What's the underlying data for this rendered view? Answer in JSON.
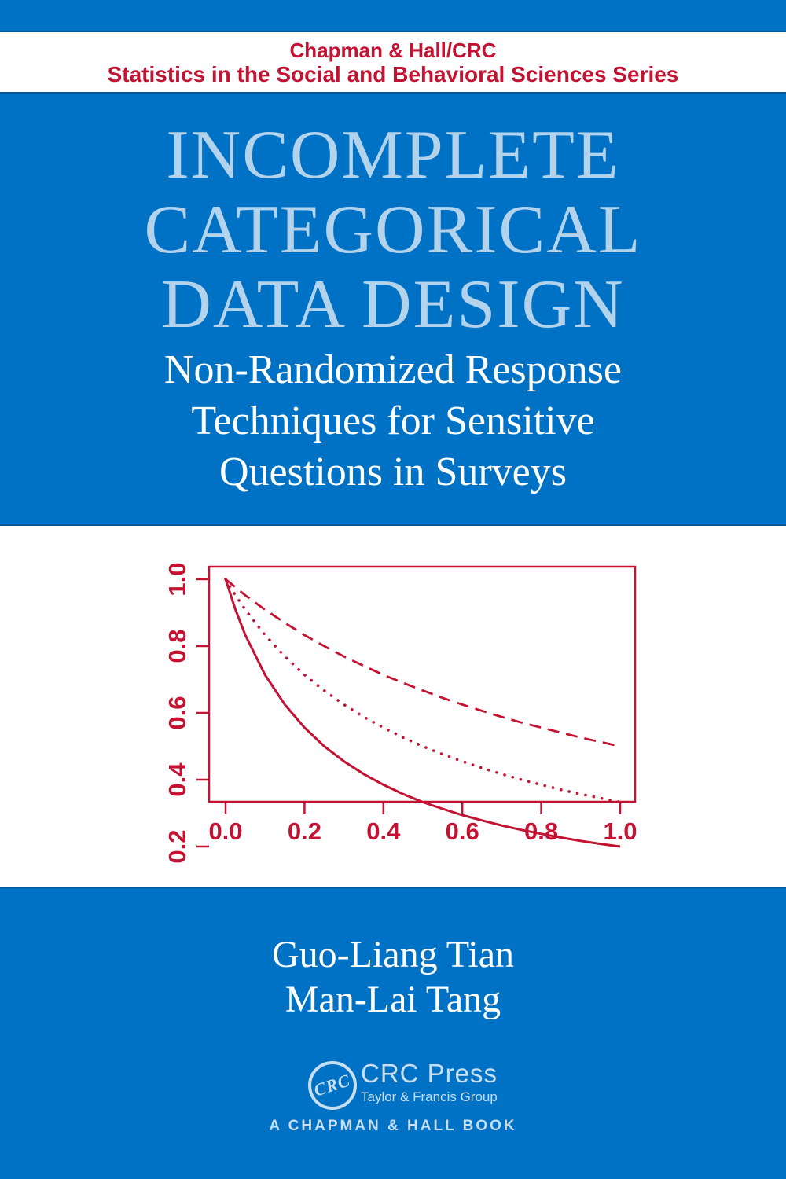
{
  "header": {
    "publisher": "Chapman & Hall/CRC",
    "series": "Statistics in the Social and Behavioral Sciences Series"
  },
  "title": {
    "lines": [
      "INCOMPLETE",
      "CATEGORICAL",
      "DATA DESIGN"
    ]
  },
  "subtitle": {
    "lines": [
      "Non-Randomized Response",
      "Techniques for Sensitive",
      "Questions in Surveys"
    ]
  },
  "authors": [
    "Guo-Liang Tian",
    "Man-Lai Tang"
  ],
  "publisher_logo": {
    "monogram": "CRC",
    "name": "CRC Press",
    "group": "Taylor & Francis Group",
    "book_line": "A CHAPMAN & HALL BOOK"
  },
  "colors": {
    "background_blue": "#0072C6",
    "accent_red": "#C41232",
    "title_light_blue": "#B3D2EB",
    "logo_pale_blue": "#C9DEF0",
    "white": "#FFFFFF"
  },
  "chart_data": {
    "type": "line",
    "title": "",
    "xlabel": "",
    "ylabel": "",
    "xlim": [
      0.0,
      1.0
    ],
    "ylim": [
      0.2,
      1.0
    ],
    "grid": false,
    "legend": "none",
    "line_color": "#C41232",
    "xticks": [
      "0.0",
      "0.2",
      "0.4",
      "0.6",
      "0.8",
      "1.0"
    ],
    "yticks": [
      "0.2",
      "0.4",
      "0.6",
      "0.8",
      "1.0"
    ],
    "x": [
      0,
      0.025,
      0.05,
      0.1,
      0.15,
      0.2,
      0.25,
      0.3,
      0.35,
      0.4,
      0.45,
      0.5,
      0.55,
      0.6,
      0.65,
      0.7,
      0.75,
      0.8,
      0.85,
      0.9,
      0.95,
      1.0
    ],
    "series": [
      {
        "name": "solid-curve",
        "style": "solid",
        "values": [
          1.0,
          0.909,
          0.833,
          0.714,
          0.625,
          0.556,
          0.5,
          0.455,
          0.417,
          0.385,
          0.357,
          0.333,
          0.313,
          0.294,
          0.278,
          0.263,
          0.25,
          0.238,
          0.227,
          0.217,
          0.208,
          0.2
        ]
      },
      {
        "name": "dotted-curve",
        "style": "dotted",
        "values": [
          1.0,
          0.952,
          0.909,
          0.833,
          0.769,
          0.714,
          0.667,
          0.625,
          0.588,
          0.556,
          0.526,
          0.5,
          0.476,
          0.455,
          0.435,
          0.417,
          0.4,
          0.385,
          0.37,
          0.357,
          0.345,
          0.333
        ]
      },
      {
        "name": "dashed-curve",
        "style": "dashed",
        "values": [
          1.0,
          0.976,
          0.952,
          0.909,
          0.87,
          0.833,
          0.8,
          0.769,
          0.741,
          0.714,
          0.69,
          0.667,
          0.645,
          0.625,
          0.606,
          0.588,
          0.571,
          0.556,
          0.541,
          0.526,
          0.513,
          0.5
        ]
      }
    ]
  }
}
